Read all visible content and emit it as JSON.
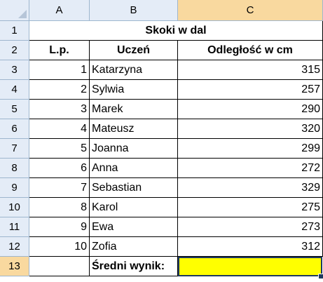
{
  "columns": [
    "A",
    "B",
    "C"
  ],
  "rows": [
    "1",
    "2",
    "3",
    "4",
    "5",
    "6",
    "7",
    "8",
    "9",
    "10",
    "11",
    "12",
    "13"
  ],
  "title": "Skoki w dal",
  "headers": {
    "lp": "L.p.",
    "student": "Uczeń",
    "distance": "Odległość w cm"
  },
  "students": [
    {
      "lp": "1",
      "name": "Katarzyna",
      "distance": "315"
    },
    {
      "lp": "2",
      "name": "Sylwia",
      "distance": "257"
    },
    {
      "lp": "3",
      "name": "Marek",
      "distance": "290"
    },
    {
      "lp": "4",
      "name": "Mateusz",
      "distance": "320"
    },
    {
      "lp": "5",
      "name": "Joanna",
      "distance": "299"
    },
    {
      "lp": "6",
      "name": "Anna",
      "distance": "272"
    },
    {
      "lp": "7",
      "name": "Sebastian",
      "distance": "329"
    },
    {
      "lp": "8",
      "name": "Karol",
      "distance": "275"
    },
    {
      "lp": "9",
      "name": "Ewa",
      "distance": "273"
    },
    {
      "lp": "10",
      "name": "Zofia",
      "distance": "312"
    }
  ],
  "summary": {
    "label": "Średni wynik:",
    "value": ""
  },
  "colors": {
    "highlight": "#ffff00",
    "header_bg": "#e4ecf7",
    "selected_header": "#f9d99f"
  },
  "active_cell": "C13"
}
